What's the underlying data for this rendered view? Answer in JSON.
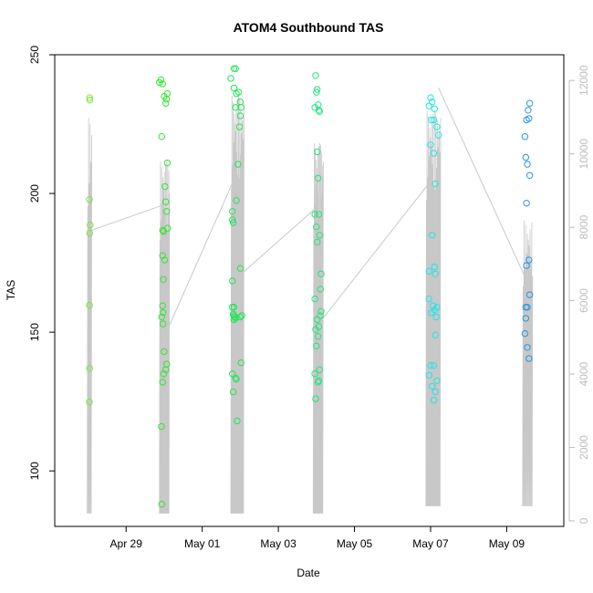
{
  "chart_data": {
    "type": "scatter",
    "title": "ATOM4 Southbound TAS",
    "xlabel": "Date",
    "ylabel": "TAS",
    "xlim": [
      "2016-04-27T03:00",
      "2016-05-10T12:00"
    ],
    "ylim": [
      80,
      250
    ],
    "y2lim": [
      -150,
      12700
    ],
    "x_ticks": [
      {
        "date": "2016-04-29",
        "label": "Apr 29"
      },
      {
        "date": "2016-05-01",
        "label": "May 01"
      },
      {
        "date": "2016-05-03",
        "label": "May 03"
      },
      {
        "date": "2016-05-05",
        "label": "May 05"
      },
      {
        "date": "2016-05-07",
        "label": "May 07"
      },
      {
        "date": "2016-05-09",
        "label": "May 09"
      }
    ],
    "y_ticks": [
      "100",
      "150",
      "200",
      "250"
    ],
    "y2_ticks": [
      "0",
      "2000",
      "4000",
      "6000",
      "8000",
      "10000",
      "12000"
    ],
    "grid": false,
    "colors": {
      "points_series": [
        "#7ee63a",
        "#33e633",
        "#22e655",
        "#22e67a",
        "#22e6e6",
        "#2896e6"
      ],
      "altitude_line": "#c8c8c8",
      "right_axis": "#bdbdbd"
    },
    "series": [
      {
        "marker": "circle",
        "color": "#7ee63a",
        "points": [
          {
            "date": "2016-04-28T01:00",
            "tas": 234.5
          },
          {
            "date": "2016-04-28T01:10",
            "tas": 233.7
          },
          {
            "date": "2016-04-28T00:50",
            "tas": 197.8
          },
          {
            "date": "2016-04-28T01:20",
            "tas": 188.6
          },
          {
            "date": "2016-04-28T01:05",
            "tas": 185.7
          },
          {
            "date": "2016-04-28T00:55",
            "tas": 159.7
          },
          {
            "date": "2016-04-28T00:58",
            "tas": 137.0
          },
          {
            "date": "2016-04-28T00:52",
            "tas": 124.9
          }
        ]
      },
      {
        "marker": "circle",
        "color": "#33e633",
        "points": [
          {
            "date": "2016-04-29T21:00",
            "tas": 240.0
          },
          {
            "date": "2016-04-29T22:00",
            "tas": 241.0
          },
          {
            "date": "2016-04-29T23:00",
            "tas": 239.5
          },
          {
            "date": "2016-04-30T00:00",
            "tas": 235.0
          },
          {
            "date": "2016-04-30T01:00",
            "tas": 232.5
          },
          {
            "date": "2016-04-30T02:00",
            "tas": 236.0
          },
          {
            "date": "2016-04-30T01:30",
            "tas": 234.0
          },
          {
            "date": "2016-04-29T22:30",
            "tas": 220.5
          },
          {
            "date": "2016-04-30T02:00",
            "tas": 211.0
          },
          {
            "date": "2016-04-30T00:30",
            "tas": 202.5
          },
          {
            "date": "2016-04-30T01:00",
            "tas": 197.0
          },
          {
            "date": "2016-04-30T01:30",
            "tas": 193.5
          },
          {
            "date": "2016-04-30T02:10",
            "tas": 187.5
          },
          {
            "date": "2016-04-29T23:00",
            "tas": 186.7
          },
          {
            "date": "2016-04-29T23:40",
            "tas": 186.3
          },
          {
            "date": "2016-04-29T23:00",
            "tas": 177.6
          },
          {
            "date": "2016-04-30T00:20",
            "tas": 176.0
          },
          {
            "date": "2016-04-29T23:30",
            "tas": 169.0
          },
          {
            "date": "2016-04-29T23:00",
            "tas": 159.5
          },
          {
            "date": "2016-04-29T23:20",
            "tas": 157.0
          },
          {
            "date": "2016-04-29T22:30",
            "tas": 155.5
          },
          {
            "date": "2016-04-29T23:10",
            "tas": 153.0
          },
          {
            "date": "2016-04-30T00:00",
            "tas": 143.0
          },
          {
            "date": "2016-04-30T01:40",
            "tas": 138.5
          },
          {
            "date": "2016-04-30T01:00",
            "tas": 136.5
          },
          {
            "date": "2016-04-29T23:40",
            "tas": 135.0
          },
          {
            "date": "2016-04-29T23:00",
            "tas": 132.0
          },
          {
            "date": "2016-04-29T22:20",
            "tas": 116.0
          },
          {
            "date": "2016-04-29T22:30",
            "tas": 88.0
          }
        ]
      },
      {
        "marker": "circle",
        "color": "#22e655",
        "points": [
          {
            "date": "2016-05-01T20:00",
            "tas": 245.0
          },
          {
            "date": "2016-05-01T21:00",
            "tas": 245.0
          },
          {
            "date": "2016-05-01T18:00",
            "tas": 241.5
          },
          {
            "date": "2016-05-01T20:00",
            "tas": 238.0
          },
          {
            "date": "2016-05-01T23:00",
            "tas": 236.5
          },
          {
            "date": "2016-05-01T21:30",
            "tas": 236.0
          },
          {
            "date": "2016-05-02T00:00",
            "tas": 233.0
          },
          {
            "date": "2016-05-01T21:00",
            "tas": 231.0
          },
          {
            "date": "2016-05-02T00:30",
            "tas": 231.0
          },
          {
            "date": "2016-05-02T00:00",
            "tas": 228.0
          },
          {
            "date": "2016-05-01T23:30",
            "tas": 224.0
          },
          {
            "date": "2016-05-01T22:30",
            "tas": 210.5
          },
          {
            "date": "2016-05-01T21:30",
            "tas": 197.5
          },
          {
            "date": "2016-05-01T19:00",
            "tas": 193.5
          },
          {
            "date": "2016-05-01T19:00",
            "tas": 190.5
          },
          {
            "date": "2016-05-01T19:30",
            "tas": 189.5
          },
          {
            "date": "2016-05-02T00:00",
            "tas": 173.0
          },
          {
            "date": "2016-05-01T19:00",
            "tas": 168.5
          },
          {
            "date": "2016-05-01T19:00",
            "tas": 159.0
          },
          {
            "date": "2016-05-01T20:00",
            "tas": 159.0
          },
          {
            "date": "2016-05-01T19:30",
            "tas": 156.5
          },
          {
            "date": "2016-05-01T20:00",
            "tas": 156.0
          },
          {
            "date": "2016-05-01T20:30",
            "tas": 155.5
          },
          {
            "date": "2016-05-02T00:00",
            "tas": 155.5
          },
          {
            "date": "2016-05-02T01:00",
            "tas": 156.0
          },
          {
            "date": "2016-05-01T21:00",
            "tas": 155.0
          },
          {
            "date": "2016-05-01T20:00",
            "tas": 154.5
          },
          {
            "date": "2016-05-02T00:30",
            "tas": 139.0
          },
          {
            "date": "2016-05-01T19:00",
            "tas": 135.0
          },
          {
            "date": "2016-05-01T21:00",
            "tas": 133.5
          },
          {
            "date": "2016-05-01T21:30",
            "tas": 133.0
          },
          {
            "date": "2016-05-01T19:30",
            "tas": 128.5
          },
          {
            "date": "2016-05-01T22:00",
            "tas": 118.0
          }
        ]
      },
      {
        "marker": "circle",
        "color": "#22e67a",
        "points": [
          {
            "date": "2016-05-03T23:30",
            "tas": 242.5
          },
          {
            "date": "2016-05-04T00:30",
            "tas": 237.5
          },
          {
            "date": "2016-05-04T00:00",
            "tas": 236.5
          },
          {
            "date": "2016-05-03T23:00",
            "tas": 231.0
          },
          {
            "date": "2016-05-04T01:00",
            "tas": 232.0
          },
          {
            "date": "2016-05-04T01:30",
            "tas": 230.0
          },
          {
            "date": "2016-05-04T02:00",
            "tas": 229.5
          },
          {
            "date": "2016-05-04T00:30",
            "tas": 215.0
          },
          {
            "date": "2016-05-04T01:00",
            "tas": 205.5
          },
          {
            "date": "2016-05-03T23:00",
            "tas": 192.5
          },
          {
            "date": "2016-05-04T01:30",
            "tas": 192.5
          },
          {
            "date": "2016-05-04T00:00",
            "tas": 188.0
          },
          {
            "date": "2016-05-04T02:00",
            "tas": 185.0
          },
          {
            "date": "2016-05-04T00:30",
            "tas": 182.5
          },
          {
            "date": "2016-05-04T03:00",
            "tas": 171.0
          },
          {
            "date": "2016-05-04T02:30",
            "tas": 165.5
          },
          {
            "date": "2016-05-03T23:00",
            "tas": 162.0
          },
          {
            "date": "2016-05-04T03:00",
            "tas": 157.5
          },
          {
            "date": "2016-05-04T02:30",
            "tas": 156.0
          },
          {
            "date": "2016-05-04T00:30",
            "tas": 154.5
          },
          {
            "date": "2016-05-04T01:30",
            "tas": 152.0
          },
          {
            "date": "2016-05-03T23:30",
            "tas": 151.0
          },
          {
            "date": "2016-05-04T01:00",
            "tas": 148.5
          },
          {
            "date": "2016-05-04T00:00",
            "tas": 145.0
          },
          {
            "date": "2016-05-04T02:00",
            "tas": 136.5
          },
          {
            "date": "2016-05-03T23:00",
            "tas": 135.0
          },
          {
            "date": "2016-05-04T01:30",
            "tas": 132.5
          },
          {
            "date": "2016-05-04T01:00",
            "tas": 132.0
          },
          {
            "date": "2016-05-03T23:30",
            "tas": 126.0
          }
        ]
      },
      {
        "marker": "circle",
        "color": "#22e6e6",
        "points": [
          {
            "date": "2016-05-06T23:00",
            "tas": 231.5
          },
          {
            "date": "2016-05-07T00:00",
            "tas": 234.5
          },
          {
            "date": "2016-05-07T01:00",
            "tas": 233.0
          },
          {
            "date": "2016-05-07T02:30",
            "tas": 230.5
          },
          {
            "date": "2016-05-07T00:30",
            "tas": 226.5
          },
          {
            "date": "2016-05-07T02:00",
            "tas": 226.5
          },
          {
            "date": "2016-05-07T04:00",
            "tas": 224.0
          },
          {
            "date": "2016-05-07T05:00",
            "tas": 221.0
          },
          {
            "date": "2016-05-07T00:00",
            "tas": 217.5
          },
          {
            "date": "2016-05-07T02:00",
            "tas": 214.5
          },
          {
            "date": "2016-05-07T03:00",
            "tas": 203.5
          },
          {
            "date": "2016-05-07T01:00",
            "tas": 185.0
          },
          {
            "date": "2016-05-07T02:30",
            "tas": 173.5
          },
          {
            "date": "2016-05-06T23:00",
            "tas": 172.0
          },
          {
            "date": "2016-05-07T03:00",
            "tas": 171.0
          },
          {
            "date": "2016-05-06T23:00",
            "tas": 162.0
          },
          {
            "date": "2016-05-07T01:30",
            "tas": 159.5
          },
          {
            "date": "2016-05-07T04:00",
            "tas": 159.0
          },
          {
            "date": "2016-05-07T02:30",
            "tas": 158.0
          },
          {
            "date": "2016-05-07T00:30",
            "tas": 157.0
          },
          {
            "date": "2016-05-07T03:30",
            "tas": 155.5
          },
          {
            "date": "2016-05-07T03:00",
            "tas": 149.0
          },
          {
            "date": "2016-05-07T00:00",
            "tas": 138.0
          },
          {
            "date": "2016-05-07T02:00",
            "tas": 138.0
          },
          {
            "date": "2016-05-06T23:00",
            "tas": 134.5
          },
          {
            "date": "2016-05-07T01:00",
            "tas": 130.5
          },
          {
            "date": "2016-05-07T04:00",
            "tas": 132.5
          },
          {
            "date": "2016-05-07T03:00",
            "tas": 128.5
          },
          {
            "date": "2016-05-07T02:00",
            "tas": 125.5
          }
        ]
      },
      {
        "marker": "circle",
        "color": "#2896e6",
        "points": [
          {
            "date": "2016-05-09T14:30",
            "tas": 232.5
          },
          {
            "date": "2016-05-09T13:30",
            "tas": 230.0
          },
          {
            "date": "2016-05-09T12:30",
            "tas": 226.5
          },
          {
            "date": "2016-05-09T14:00",
            "tas": 227.0
          },
          {
            "date": "2016-05-09T11:30",
            "tas": 220.5
          },
          {
            "date": "2016-05-09T12:00",
            "tas": 213.0
          },
          {
            "date": "2016-05-09T13:00",
            "tas": 210.5
          },
          {
            "date": "2016-05-09T14:30",
            "tas": 206.5
          },
          {
            "date": "2016-05-09T12:30",
            "tas": 196.5
          },
          {
            "date": "2016-05-09T14:00",
            "tas": 176.0
          },
          {
            "date": "2016-05-09T12:30",
            "tas": 174.0
          },
          {
            "date": "2016-05-09T14:30",
            "tas": 163.5
          },
          {
            "date": "2016-05-09T12:00",
            "tas": 159.0
          },
          {
            "date": "2016-05-09T13:00",
            "tas": 159.0
          },
          {
            "date": "2016-05-09T12:00",
            "tas": 155.0
          },
          {
            "date": "2016-05-09T11:30",
            "tas": 149.5
          },
          {
            "date": "2016-05-09T13:00",
            "tas": 144.5
          },
          {
            "date": "2016-05-09T14:00",
            "tas": 140.5
          }
        ]
      }
    ],
    "altitude_line": {
      "axis": "right",
      "color": "#c8c8c8",
      "connectors": [
        {
          "from": [
            "2016-04-28T01:00",
            7900
          ],
          "to": [
            "2016-04-29T23:00",
            8600
          ]
        },
        {
          "from": [
            "2016-04-30T02:00",
            5200
          ],
          "to": [
            "2016-05-01T19:00",
            9200
          ]
        },
        {
          "from": [
            "2016-05-02T00:00",
            6700
          ],
          "to": [
            "2016-05-03T23:00",
            8500
          ]
        },
        {
          "from": [
            "2016-05-04T02:00",
            5400
          ],
          "to": [
            "2016-05-06T23:00",
            9200
          ]
        },
        {
          "from": [
            "2016-05-07T05:00",
            11800
          ],
          "to": [
            "2016-05-09T12:00",
            6600
          ]
        }
      ],
      "profiles": [
        {
          "start": "2016-04-27T23:30",
          "end": "2016-04-28T02:00",
          "low": 200,
          "high": 11000,
          "count": 6
        },
        {
          "start": "2016-04-29T21:00",
          "end": "2016-04-30T03:00",
          "low": 200,
          "high": 9800,
          "count": 18
        },
        {
          "start": "2016-05-01T18:00",
          "end": "2016-05-02T02:00",
          "low": 200,
          "high": 11600,
          "count": 22
        },
        {
          "start": "2016-05-03T22:00",
          "end": "2016-05-04T04:00",
          "low": 200,
          "high": 10300,
          "count": 20
        },
        {
          "start": "2016-05-06T21:00",
          "end": "2016-05-07T06:00",
          "low": 400,
          "high": 11200,
          "count": 22
        },
        {
          "start": "2016-05-09T10:00",
          "end": "2016-05-09T16:00",
          "low": 400,
          "high": 8200,
          "count": 12
        }
      ]
    }
  }
}
